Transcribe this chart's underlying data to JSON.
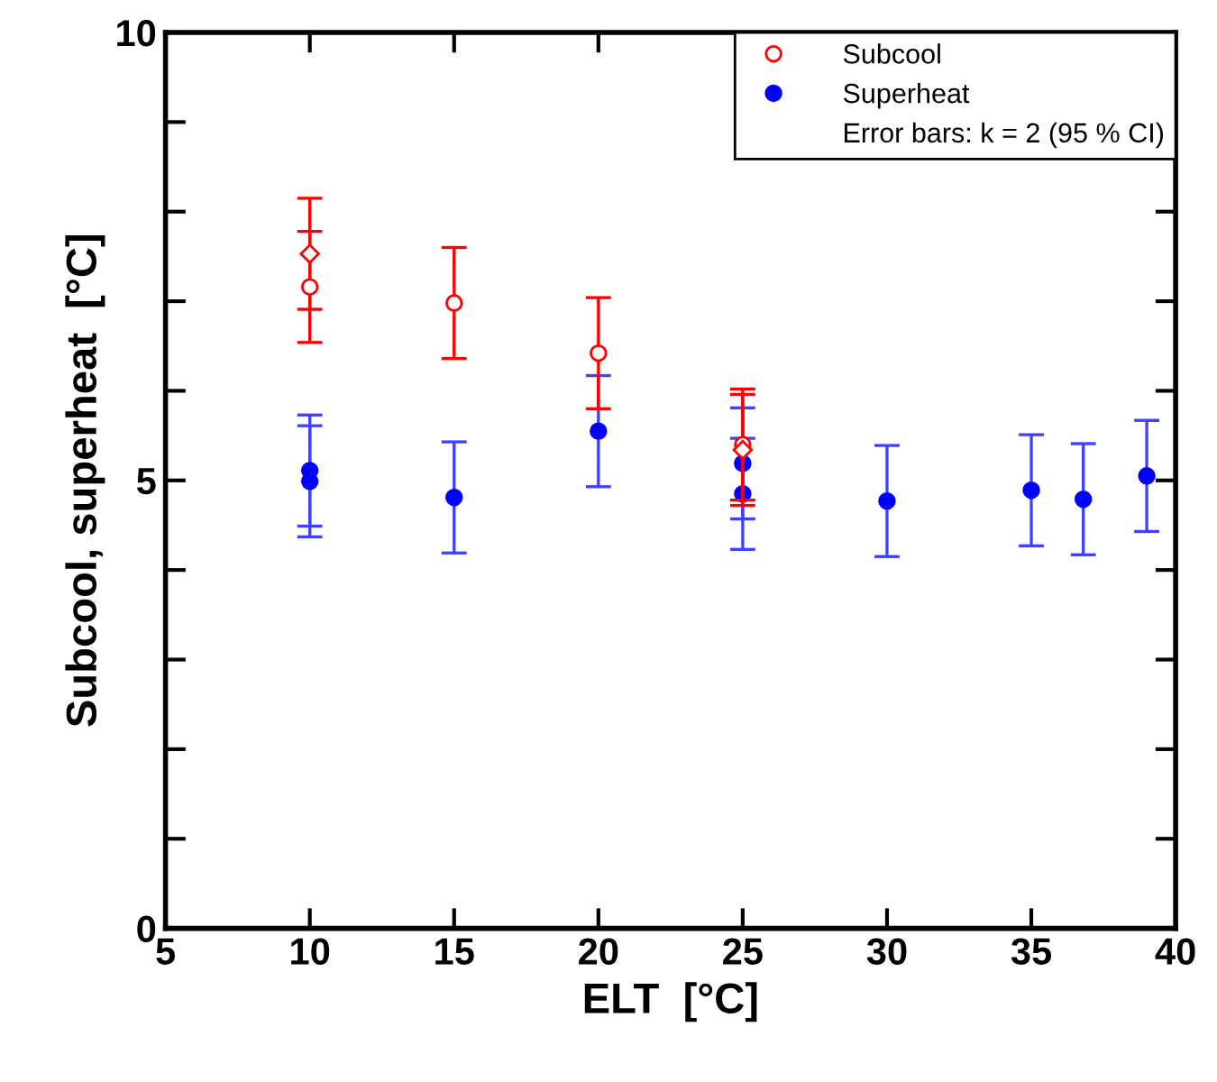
{
  "chart_data": {
    "type": "scatter",
    "xlabel": "ELT  [°C]",
    "ylabel": "Subcool, superheat  [°C]",
    "xlim": [
      5,
      40
    ],
    "xticks": [
      5,
      10,
      15,
      20,
      25,
      30,
      35,
      40
    ],
    "ylim": [
      0,
      10
    ],
    "yticks": [
      0,
      {
        "value": 1,
        "label": null
      },
      {
        "value": 2,
        "label": null
      },
      {
        "value": 3,
        "label": null
      },
      {
        "value": 4,
        "label": null
      },
      5,
      {
        "value": 6,
        "label": null
      },
      {
        "value": 7,
        "label": null
      },
      {
        "value": 8,
        "label": null
      },
      {
        "value": 9,
        "label": null
      },
      10
    ],
    "legend": "top right",
    "grid": false,
    "annotations": [
      "Error bars: k = 2 (95 % CI)"
    ],
    "series": [
      {
        "name": "Subcool",
        "color": "#ff0000",
        "marker": "circle",
        "x": [
          10,
          15,
          20,
          25
        ],
        "values": [
          7.16,
          6.98,
          6.42,
          5.4
        ],
        "errors": [
          0.62,
          0.62,
          0.62,
          0.62
        ]
      },
      {
        "color": "#ff0000",
        "marker": "diamond",
        "x": [
          10,
          25
        ],
        "values": [
          7.53,
          5.34
        ],
        "errors": [
          0.62,
          0.62
        ]
      },
      {
        "name": "Superheat",
        "color": "#0000ff",
        "marker": "circle",
        "x": [
          10,
          10,
          15,
          20,
          25,
          25,
          30,
          35,
          36.8,
          39
        ],
        "values": [
          5.11,
          4.99,
          4.81,
          5.55,
          5.19,
          4.85,
          4.77,
          4.89,
          4.79,
          5.05
        ],
        "errors": [
          0.62,
          0.62,
          0.62,
          0.62,
          0.62,
          0.62,
          0.62,
          0.62,
          0.62,
          0.62
        ]
      }
    ]
  }
}
